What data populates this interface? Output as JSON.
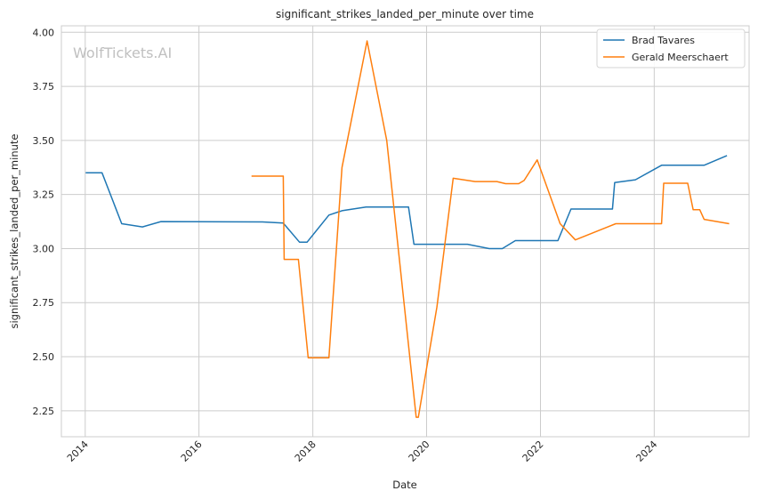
{
  "chart_data": {
    "type": "line",
    "title": "significant_strikes_landed_per_minute over time",
    "xlabel": "Date",
    "ylabel": "significant_strikes_landed_per_minute",
    "watermark": "WolfTickets.AI",
    "xlim": [
      "2013-08-01",
      "2025-09-01"
    ],
    "ylim": [
      2.13,
      4.03
    ],
    "xticks": [
      "2014",
      "2016",
      "2018",
      "2020",
      "2022",
      "2024"
    ],
    "yticks": [
      "2.25",
      "2.50",
      "2.75",
      "3.00",
      "3.25",
      "3.50",
      "3.75",
      "4.00"
    ],
    "grid": true,
    "legend": "top-right",
    "series": [
      {
        "name": "Brad Tavares",
        "color": "#1f77b4",
        "points": [
          [
            "2014-01-04",
            3.35
          ],
          [
            "2014-04-19",
            3.35
          ],
          [
            "2014-08-23",
            3.115
          ],
          [
            "2015-01-03",
            3.1
          ],
          [
            "2015-05-02",
            3.125
          ],
          [
            "2017-02-11",
            3.123
          ],
          [
            "2017-06-25",
            3.118
          ],
          [
            "2017-10-07",
            3.03
          ],
          [
            "2017-11-25",
            3.03
          ],
          [
            "2018-04-14",
            3.155
          ],
          [
            "2018-07-07",
            3.175
          ],
          [
            "2018-12-08",
            3.192
          ],
          [
            "2019-09-07",
            3.192
          ],
          [
            "2019-10-12",
            3.02
          ],
          [
            "2020-09-19",
            3.02
          ],
          [
            "2021-02-06",
            3.0
          ],
          [
            "2021-05-01",
            3.0
          ],
          [
            "2021-07-24",
            3.037
          ],
          [
            "2022-04-23",
            3.037
          ],
          [
            "2022-07-16",
            3.183
          ],
          [
            "2023-04-08",
            3.183
          ],
          [
            "2023-04-22",
            3.305
          ],
          [
            "2023-09-02",
            3.318
          ],
          [
            "2024-02-17",
            3.385
          ],
          [
            "2024-11-16",
            3.385
          ],
          [
            "2025-04-12",
            3.43
          ]
        ]
      },
      {
        "name": "Gerald Meerschaert",
        "color": "#ff7f0e",
        "points": [
          [
            "2016-12-03",
            3.335
          ],
          [
            "2017-06-25",
            3.335
          ],
          [
            "2017-07-01",
            2.95
          ],
          [
            "2017-09-30",
            2.95
          ],
          [
            "2017-12-02",
            2.495
          ],
          [
            "2018-04-14",
            2.495
          ],
          [
            "2018-07-07",
            3.375
          ],
          [
            "2018-12-15",
            3.96
          ],
          [
            "2019-04-20",
            3.5
          ],
          [
            "2019-10-26",
            2.22
          ],
          [
            "2019-11-09",
            2.22
          ],
          [
            "2020-03-07",
            2.73
          ],
          [
            "2020-06-20",
            3.325
          ],
          [
            "2020-11-07",
            3.31
          ],
          [
            "2021-03-27",
            3.31
          ],
          [
            "2021-05-22",
            3.3
          ],
          [
            "2021-08-14",
            3.3
          ],
          [
            "2021-09-18",
            3.315
          ],
          [
            "2021-12-11",
            3.41
          ],
          [
            "2022-05-07",
            3.115
          ],
          [
            "2022-08-13",
            3.04
          ],
          [
            "2023-04-29",
            3.115
          ],
          [
            "2024-02-17",
            3.115
          ],
          [
            "2024-03-02",
            3.302
          ],
          [
            "2024-08-03",
            3.302
          ],
          [
            "2024-09-07",
            3.18
          ],
          [
            "2024-10-19",
            3.18
          ],
          [
            "2024-11-16",
            3.135
          ],
          [
            "2025-04-26",
            3.115
          ]
        ]
      }
    ]
  }
}
